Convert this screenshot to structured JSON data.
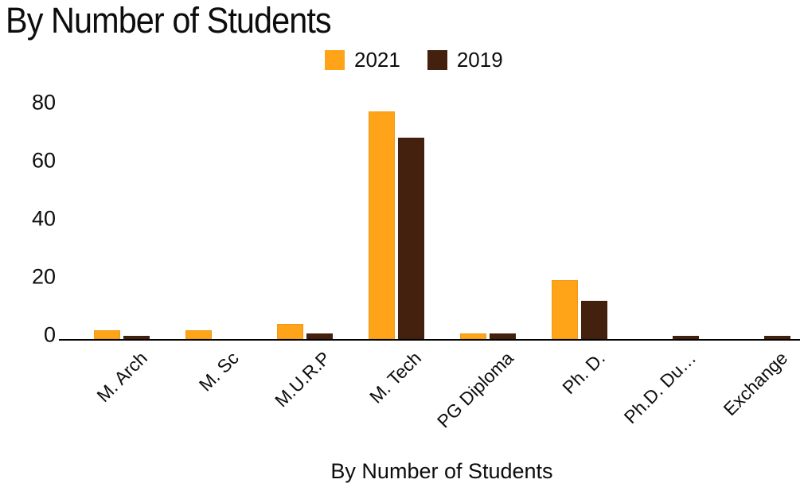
{
  "chart_data": {
    "type": "bar",
    "title": "By Number of Students",
    "xlabel": "By Number of Students",
    "ylabel": "",
    "categories": [
      "M. Arch",
      "M. Sc",
      "M.U.R.P",
      "M. Tech",
      "PG Diploma",
      "Ph. D.",
      "Ph.D. Du…",
      "Exchange"
    ],
    "series": [
      {
        "name": "2021",
        "color": "#FFA318",
        "values": [
          3,
          3,
          5,
          77,
          2,
          20,
          0,
          0
        ]
      },
      {
        "name": "2019",
        "color": "#44200E",
        "values": [
          1,
          0,
          2,
          68,
          2,
          13,
          1,
          1
        ]
      }
    ],
    "ylim": [
      0,
      80
    ],
    "yticks": [
      0,
      20,
      40,
      60,
      80
    ],
    "grid": false,
    "legend_position": "top-center",
    "background_color": "#ffffff",
    "axis_color": "#000000",
    "text_color": "#0d0d0d"
  }
}
